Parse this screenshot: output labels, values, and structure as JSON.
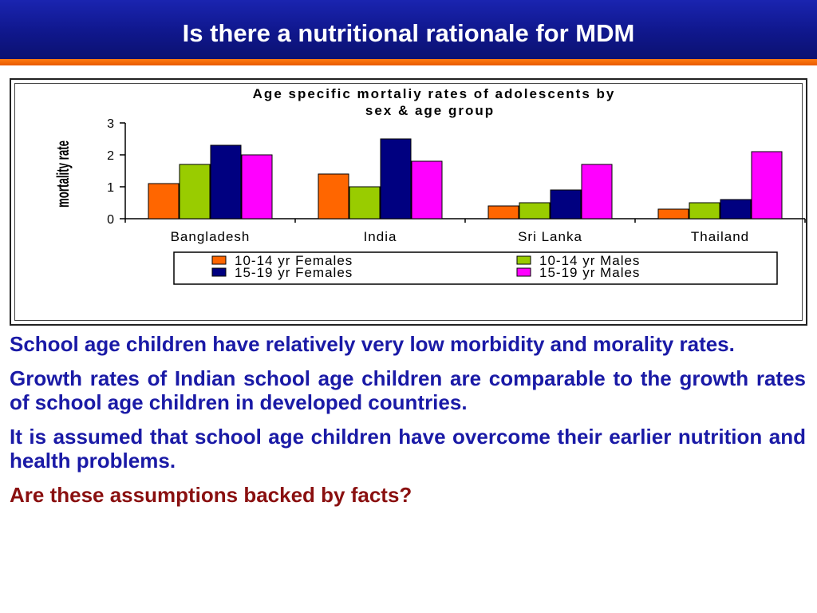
{
  "slide": {
    "title": "Is there a nutritional rationale for MDM"
  },
  "colors": {
    "title_bar": "#10188f",
    "accent_stripe": "#ff7a10",
    "text_blue": "#1a1aa6",
    "text_red": "#8a1010"
  },
  "chart_data": {
    "type": "bar",
    "title_line1": "Age specific mortaliy rates of adolescents by",
    "title_line2": "sex & age group",
    "ylabel": "mortality rate",
    "xlabel": "",
    "ylim": [
      0,
      3
    ],
    "yticks": [
      "0",
      "1",
      "2",
      "3"
    ],
    "categories": [
      "Bangladesh",
      "India",
      "Sri Lanka",
      "Thailand"
    ],
    "series": [
      {
        "name": "10-14 yr Females",
        "color": "#ff6600",
        "values": [
          1.1,
          1.4,
          0.4,
          0.3
        ]
      },
      {
        "name": "10-14 yr Males",
        "color": "#99cc00",
        "values": [
          1.7,
          1.0,
          0.5,
          0.5
        ]
      },
      {
        "name": "15-19 yr Females",
        "color": "#000080",
        "values": [
          2.3,
          2.5,
          0.9,
          0.6
        ]
      },
      {
        "name": "15-19 yr Males",
        "color": "#ff00ff",
        "values": [
          2.0,
          1.8,
          1.7,
          2.1
        ]
      }
    ],
    "legend_position": "bottom",
    "grid": false
  },
  "body": {
    "p1": "School age children have relatively very low morbidity and morality  rates.",
    "p2": "Growth rates of Indian school age children are comparable to the growth rates of school age children in developed countries.",
    "p3": "It is assumed that school age children have overcome their earlier nutrition and health  problems.",
    "p4": "Are these assumptions backed by facts?"
  }
}
